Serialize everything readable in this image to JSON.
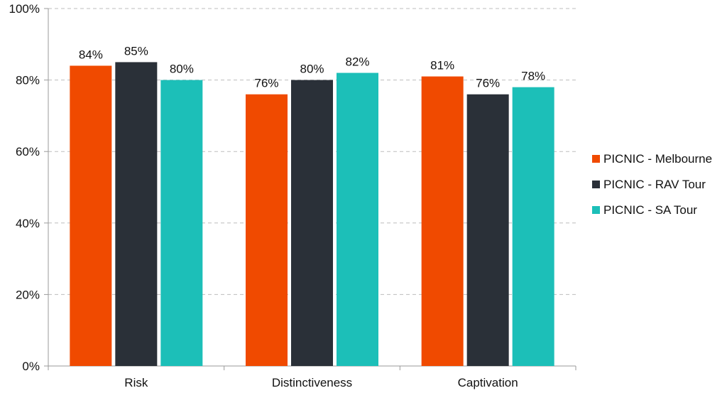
{
  "chart_data": {
    "type": "bar",
    "title": "",
    "xlabel": "",
    "ylabel": "",
    "categories": [
      "Risk",
      "Distinctiveness",
      "Captivation"
    ],
    "series": [
      {
        "name": "PICNIC - Melbourne",
        "values": [
          84,
          76,
          81
        ],
        "color": "#f04a00"
      },
      {
        "name": "PICNIC - RAV Tour",
        "values": [
          85,
          80,
          76
        ],
        "color": "#2a3038"
      },
      {
        "name": "PICNIC - SA Tour",
        "values": [
          80,
          82,
          78
        ],
        "color": "#1cbfb8"
      }
    ],
    "ylim": [
      0,
      100
    ],
    "yticks": [
      0,
      20,
      40,
      60,
      80,
      100
    ],
    "ytick_labels": [
      "0%",
      "20%",
      "40%",
      "60%",
      "80%",
      "100%"
    ],
    "data_labels": [
      [
        "84%",
        "76%",
        "81%"
      ],
      [
        "85%",
        "80%",
        "76%"
      ],
      [
        "80%",
        "82%",
        "78%"
      ]
    ],
    "grid": true,
    "legend_position": "right"
  }
}
